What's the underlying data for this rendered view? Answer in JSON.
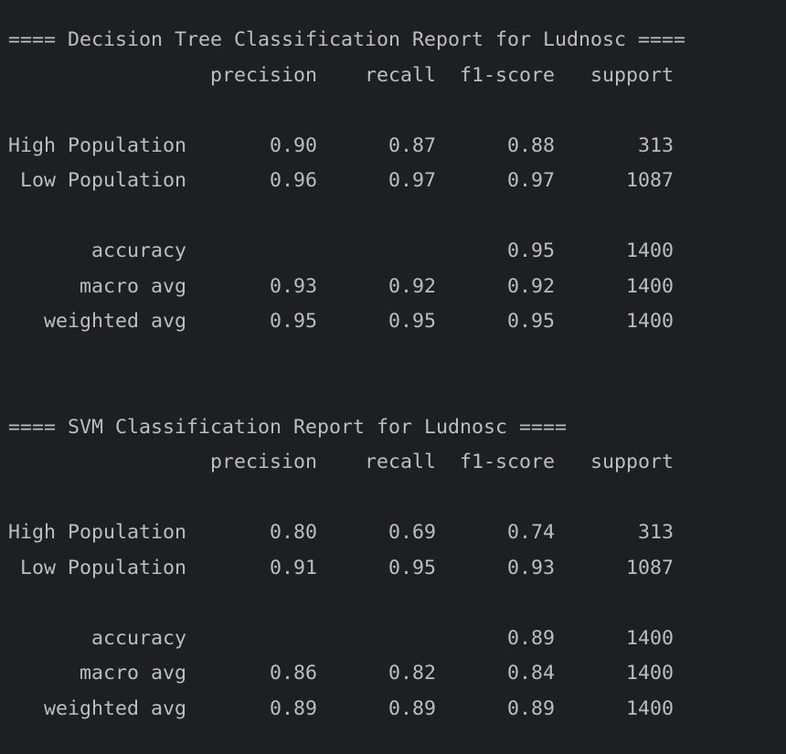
{
  "console": {
    "lines": [
      "==== Decision Tree Classification Report for Ludnosc ====",
      "                 precision    recall  f1-score   support",
      "",
      "High Population       0.90      0.87      0.88       313",
      " Low Population       0.96      0.97      0.97      1087",
      "",
      "       accuracy                           0.95      1400",
      "      macro avg       0.93      0.92      0.92      1400",
      "   weighted avg       0.95      0.95      0.95      1400",
      "",
      "",
      "==== SVM Classification Report for Ludnosc ====",
      "                 precision    recall  f1-score   support",
      "",
      "High Population       0.80      0.69      0.74       313",
      " Low Population       0.91      0.95      0.93      1087",
      "",
      "       accuracy                           0.89      1400",
      "      macro avg       0.86      0.82      0.84      1400",
      "   weighted avg       0.89      0.89      0.89      1400"
    ]
  }
}
